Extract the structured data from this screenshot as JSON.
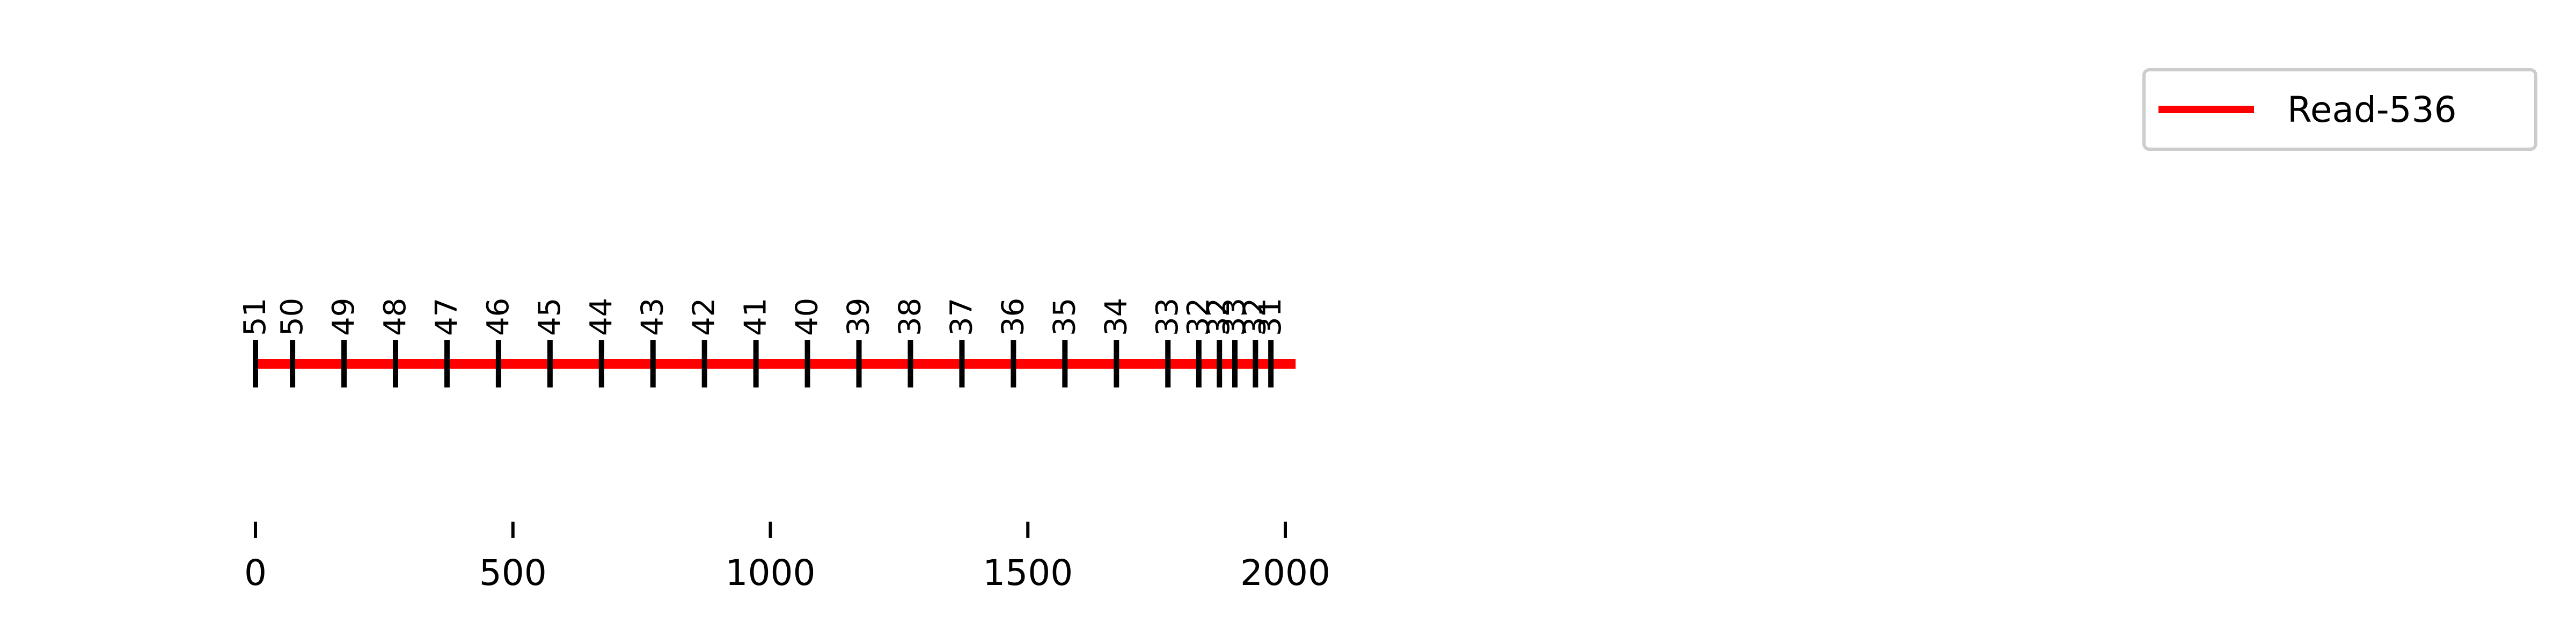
{
  "chart_data": {
    "type": "line",
    "title": "",
    "xlabel": "",
    "ylabel": "",
    "xlim": [
      0,
      2020
    ],
    "x_ticks": [
      0,
      500,
      1000,
      1500,
      2000
    ],
    "x_tick_labels": [
      "0",
      "500",
      "1000",
      "1500",
      "2000"
    ],
    "grid": false,
    "legend": {
      "position": "top-right",
      "entries": [
        {
          "label": "Read-536",
          "color": "#ff0000"
        }
      ]
    },
    "series": [
      {
        "name": "Read-536",
        "color": "#ff0000",
        "x": [
          0,
          2020
        ],
        "marks": [
          {
            "x": 0,
            "label": "51"
          },
          {
            "x": 72,
            "label": "50"
          },
          {
            "x": 172,
            "label": "49"
          },
          {
            "x": 272,
            "label": "48"
          },
          {
            "x": 372,
            "label": "47"
          },
          {
            "x": 472,
            "label": "46"
          },
          {
            "x": 572,
            "label": "45"
          },
          {
            "x": 672,
            "label": "44"
          },
          {
            "x": 772,
            "label": "43"
          },
          {
            "x": 872,
            "label": "42"
          },
          {
            "x": 972,
            "label": "41"
          },
          {
            "x": 1072,
            "label": "40"
          },
          {
            "x": 1172,
            "label": "39"
          },
          {
            "x": 1272,
            "label": "38"
          },
          {
            "x": 1372,
            "label": "37"
          },
          {
            "x": 1472,
            "label": "36"
          },
          {
            "x": 1572,
            "label": "35"
          },
          {
            "x": 1672,
            "label": "34"
          },
          {
            "x": 1772,
            "label": "33"
          },
          {
            "x": 1832,
            "label": "32"
          },
          {
            "x": 1872,
            "label": "32"
          },
          {
            "x": 1902,
            "label": "33"
          },
          {
            "x": 1942,
            "label": "32"
          },
          {
            "x": 1972,
            "label": "31"
          }
        ]
      }
    ]
  }
}
